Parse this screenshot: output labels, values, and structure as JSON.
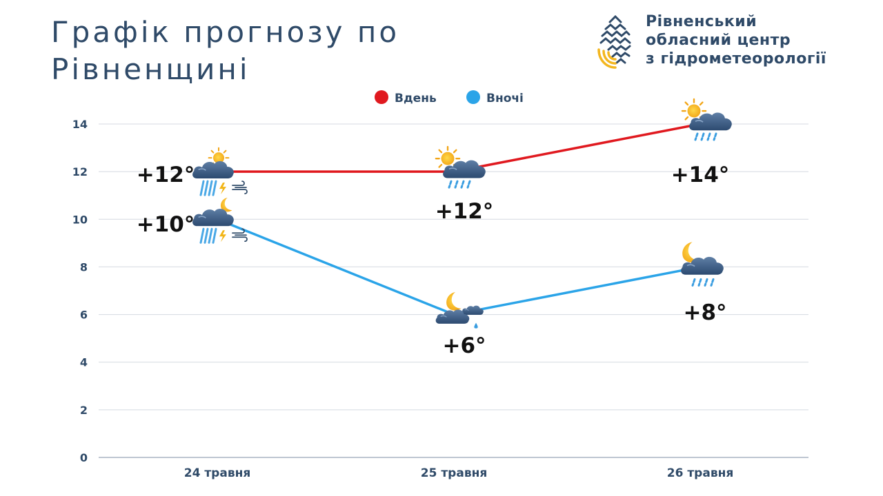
{
  "header": {
    "title_line1": "Графік прогнозу по",
    "title_line2": "Рівненщині",
    "org_line1": "Рівненський",
    "org_line2": "обласний центр",
    "org_line3": "з гідрометеорології"
  },
  "colors": {
    "day": "#e0191f",
    "night": "#2ba4e8",
    "text": "#2f4a68",
    "grid": "#d4d9e0",
    "logo_blue": "#2f4a68",
    "logo_yellow": "#f3b61f"
  },
  "chart_data": {
    "type": "line",
    "categories": [
      "24 травня",
      "25 травня",
      "26 травня"
    ],
    "ylim": [
      0,
      14
    ],
    "yticks": [
      "0",
      "2",
      "4",
      "6",
      "8",
      "10",
      "12",
      "14"
    ],
    "grid": true,
    "legend_position": "top-center",
    "series": [
      {
        "name": "Вдень",
        "values": [
          12,
          12,
          14
        ],
        "labels": [
          "+12°",
          "+12°",
          "+14°"
        ],
        "icons": [
          "sun-cloud-thunderstorm-rain-wind-icon",
          "sun-cloud-rain-icon",
          "sun-cloud-rain-icon"
        ]
      },
      {
        "name": "Вночі",
        "values": [
          10,
          6,
          8
        ],
        "labels": [
          "+10°",
          "+6°",
          "+8°"
        ],
        "icons": [
          "moon-cloud-thunderstorm-rain-wind-icon",
          "moon-cloud-light-rain-icon",
          "moon-cloud-rain-icon"
        ]
      }
    ]
  }
}
